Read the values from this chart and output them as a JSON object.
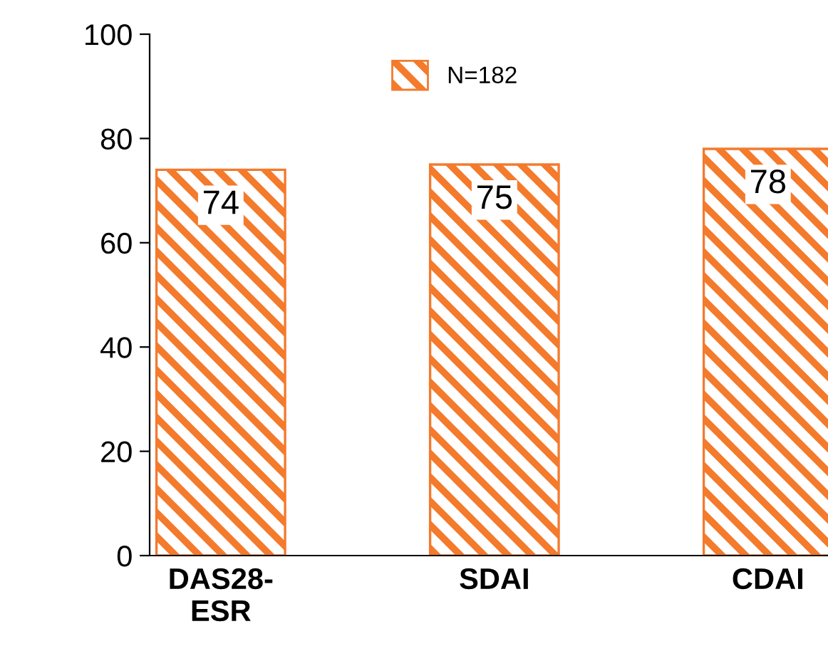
{
  "chart_data": {
    "type": "bar",
    "categories": [
      "DAS28-\nESR",
      "SDAI",
      "CDAI"
    ],
    "series": [
      {
        "name": "N=182",
        "color": "#f47a2c",
        "values": [
          74,
          75,
          78
        ]
      }
    ],
    "ylim": [
      0,
      100
    ],
    "yticks": [
      0,
      20,
      40,
      60,
      80,
      100
    ],
    "data_labels": true,
    "legend": "top",
    "grid": false
  }
}
